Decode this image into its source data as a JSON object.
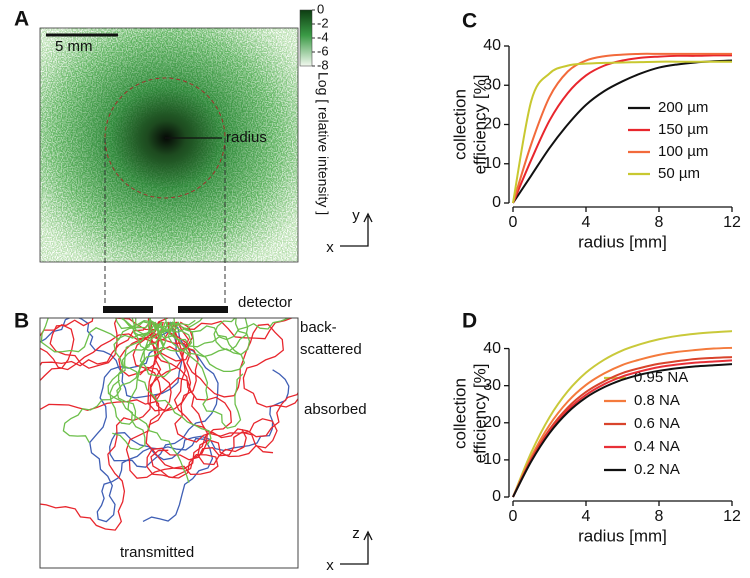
{
  "chart_data": [
    {
      "type": "heatmap",
      "panel": "A",
      "scale_label": "5 mm",
      "annotation": "radius",
      "detector_label": "detector",
      "colorbar": {
        "label": "Log [ relative intensity ]",
        "clim": [
          -8,
          0
        ],
        "ticks": [
          0,
          -2,
          -4,
          -6,
          -8
        ]
      },
      "axes": [
        "y",
        "x"
      ]
    },
    {
      "type": "trajectories",
      "panel": "B",
      "labels": [
        {
          "text": "back-",
          "color": "#6cbf4a"
        },
        {
          "text": "scattered",
          "color": "#6cbf4a"
        },
        {
          "text": "absorbed",
          "color": "#e8262d"
        },
        {
          "text": "transmitted",
          "color": "#3f5fb5"
        }
      ],
      "axes": [
        "z",
        "x"
      ]
    },
    {
      "type": "line",
      "panel": "C",
      "ylabel": [
        "collection",
        "efficiency [%]"
      ],
      "xlabel": "radius [mm]",
      "x": [
        0,
        1,
        2,
        3,
        4,
        5,
        6,
        7,
        8,
        9,
        10,
        11,
        12
      ],
      "xlim": [
        0,
        12
      ],
      "xticks": [
        0,
        4,
        8,
        12
      ],
      "ylim": [
        0,
        40
      ],
      "yticks": [
        0,
        10,
        20,
        30,
        40
      ],
      "series": [
        {
          "name": "200 µm",
          "color": "#111111",
          "values": [
            0,
            7,
            14,
            20,
            25,
            28.5,
            31,
            33,
            34.5,
            35.3,
            35.8,
            36.1,
            36.3
          ]
        },
        {
          "name": "150 µm",
          "color": "#e8262d",
          "values": [
            0,
            11,
            21,
            28,
            32.5,
            35,
            36.3,
            37,
            37.3,
            37.5,
            37.5,
            37.6,
            37.6
          ]
        },
        {
          "name": "100 µm",
          "color": "#f26a3b",
          "values": [
            0,
            15,
            27,
            33.5,
            36.3,
            37.4,
            37.8,
            38,
            38,
            38,
            38,
            38,
            38
          ]
        },
        {
          "name": "50 µm",
          "color": "#c8c830",
          "values": [
            0,
            26,
            33,
            35,
            35.5,
            35.7,
            35.8,
            35.9,
            36,
            36,
            36,
            36,
            36
          ]
        }
      ]
    },
    {
      "type": "line",
      "panel": "D",
      "ylabel": [
        "collection",
        "efficiency [%]"
      ],
      "xlabel": "radius [mm]",
      "x": [
        0,
        1,
        2,
        3,
        4,
        5,
        6,
        7,
        8,
        9,
        10,
        11,
        12
      ],
      "xlim": [
        0,
        12
      ],
      "xticks": [
        0,
        4,
        8,
        12
      ],
      "ylim": [
        0,
        45
      ],
      "yticks": [
        0,
        10,
        20,
        30,
        40
      ],
      "series": [
        {
          "name": "0.95 NA",
          "color": "#c9c93a",
          "values": [
            0,
            12,
            21.5,
            28.5,
            33.5,
            37,
            39.5,
            41.2,
            42.5,
            43.4,
            44,
            44.4,
            44.7
          ]
        },
        {
          "name": "0.8 NA",
          "color": "#f47a3c",
          "values": [
            0,
            10.8,
            19.4,
            25.7,
            30.2,
            33.3,
            35.6,
            37.1,
            38.3,
            39.1,
            39.6,
            40,
            40.2
          ]
        },
        {
          "name": "0.6 NA",
          "color": "#d9442c",
          "values": [
            0,
            10.1,
            18.2,
            24.1,
            28.3,
            31.2,
            33.4,
            34.8,
            35.9,
            36.6,
            37.2,
            37.5,
            37.7
          ]
        },
        {
          "name": "0.4 NA",
          "color": "#e83038",
          "values": [
            0,
            9.9,
            17.7,
            23.4,
            27.5,
            30.4,
            32.5,
            33.9,
            35,
            35.7,
            36.2,
            36.5,
            36.8
          ]
        },
        {
          "name": "0.2 NA",
          "color": "#111111",
          "values": [
            0,
            9.6,
            17.2,
            22.8,
            26.8,
            29.6,
            31.6,
            33,
            34,
            34.7,
            35.2,
            35.5,
            35.8
          ]
        }
      ]
    }
  ]
}
